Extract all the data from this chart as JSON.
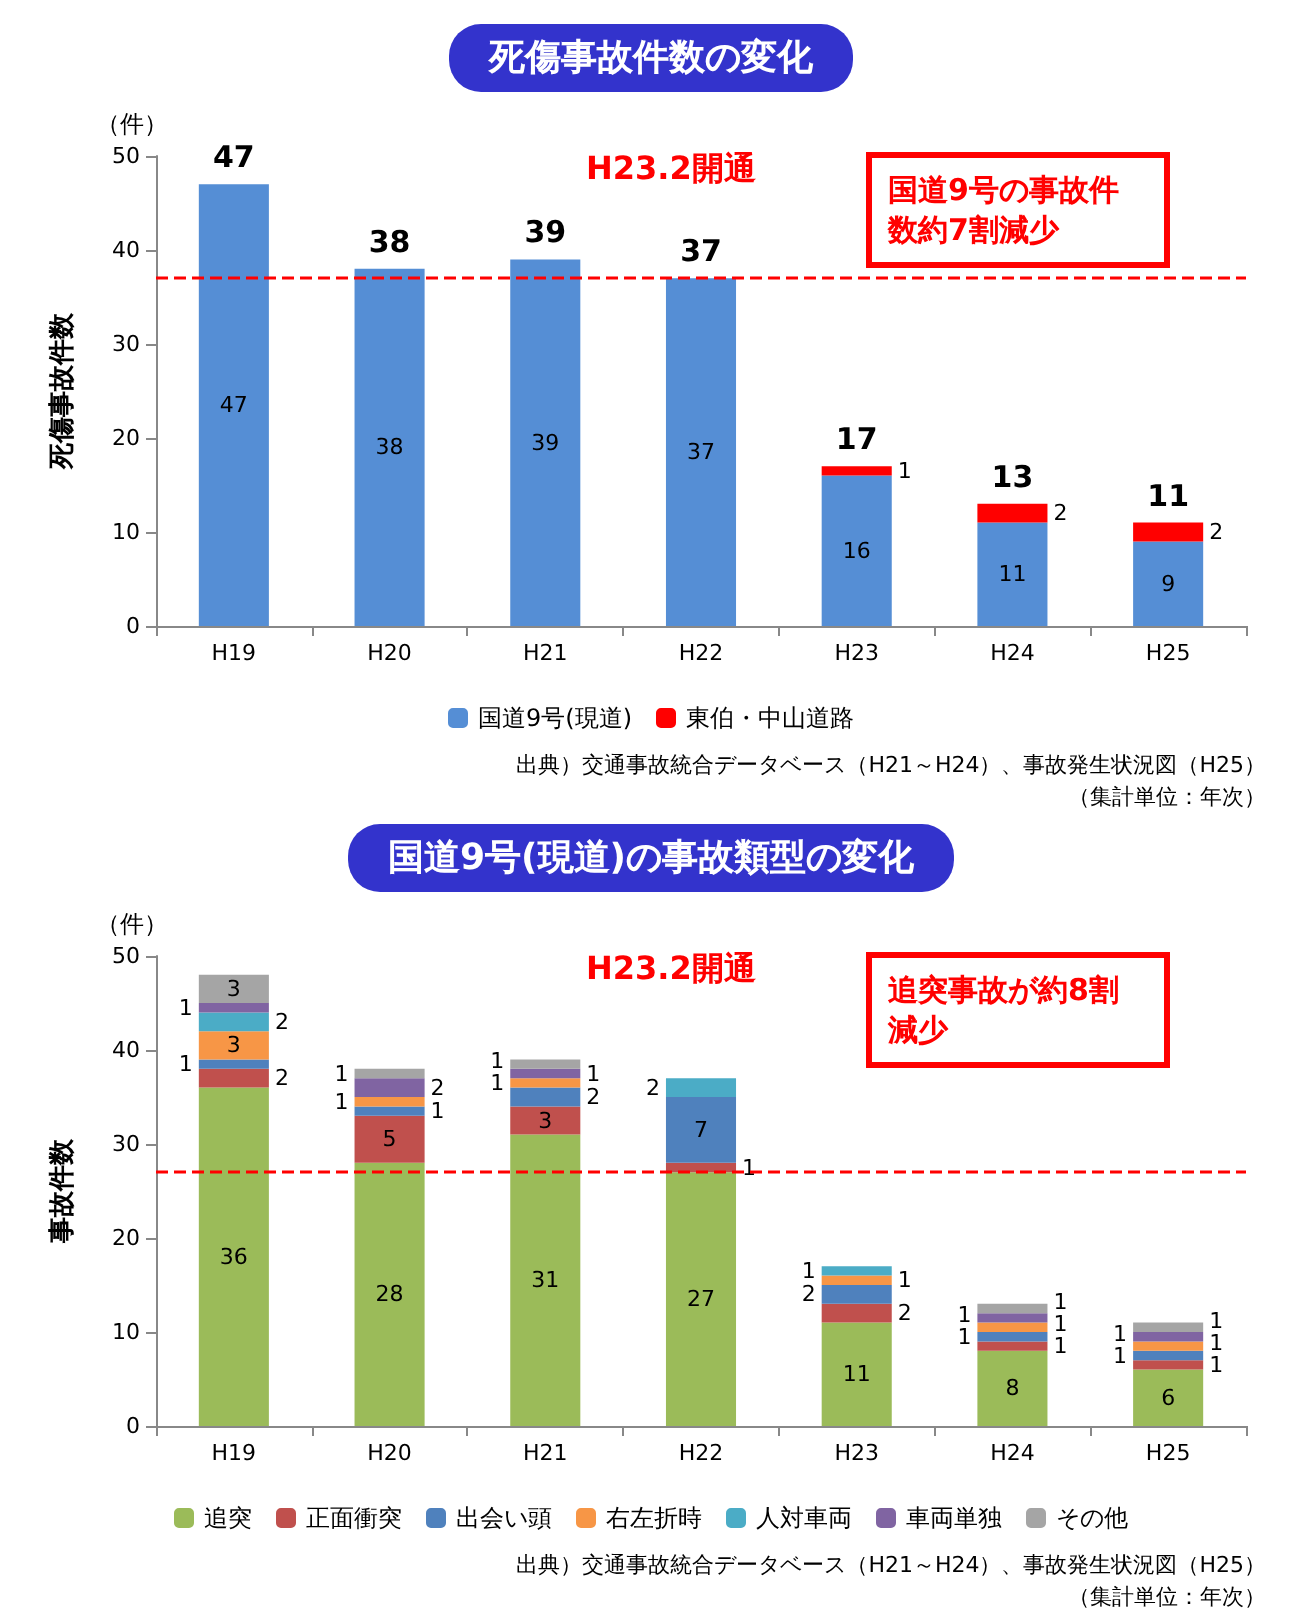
{
  "chart_data": [
    {
      "type": "bar",
      "stacked": true,
      "title": "死傷事故件数の変化",
      "ylabel": "死傷事故件数",
      "categories": [
        "H19",
        "H20",
        "H21",
        "H22",
        "H23",
        "H24",
        "H25"
      ],
      "series": [
        {
          "name": "国道9号(現道)",
          "color": "#558ed5",
          "values": [
            47,
            38,
            39,
            37,
            16,
            11,
            9
          ]
        },
        {
          "name": "東伯・中山道路",
          "color": "#ff0000",
          "values": [
            null,
            null,
            null,
            null,
            1,
            2,
            2
          ]
        }
      ],
      "ylim": [
        0,
        50
      ],
      "yticks": [
        0,
        10,
        20,
        30,
        40,
        50
      ],
      "grid": false,
      "legend": "bottom",
      "data_labels": true,
      "totals": [
        "47",
        "38",
        "39",
        "37",
        "17",
        "13",
        "11"
      ],
      "ref_lines": [
        {
          "axis": "y",
          "value": 37,
          "color": "#ff0000",
          "line_style": "dashed"
        }
      ],
      "annotations": [
        "（件）",
        "H23.2開通",
        "国道9号の事故件数約7割減少",
        "出典）交通事故統合データベース（H21～H24）、事故発生状況図（H25）",
        "（集計単位：年次）"
      ]
    },
    {
      "type": "bar",
      "stacked": true,
      "title": "国道9号(現道)の事故類型の変化",
      "ylabel": "事故件数",
      "categories": [
        "H19",
        "H20",
        "H21",
        "H22",
        "H23",
        "H24",
        "H25"
      ],
      "series": [
        {
          "name": "追突",
          "color": "#9bbb59",
          "values": [
            36,
            28,
            31,
            27,
            11,
            8,
            6
          ]
        },
        {
          "name": "正面衝突",
          "color": "#c0504d",
          "values": [
            2,
            5,
            3,
            1,
            2,
            1,
            1
          ]
        },
        {
          "name": "出会い頭",
          "color": "#4f81bd",
          "values": [
            1,
            1,
            2,
            7,
            2,
            1,
            1
          ]
        },
        {
          "name": "右左折時",
          "color": "#f79646",
          "values": [
            3,
            1,
            1,
            null,
            1,
            1,
            1
          ]
        },
        {
          "name": "人対車両",
          "color": "#4bacc6",
          "values": [
            2,
            null,
            null,
            2,
            1,
            null,
            null
          ]
        },
        {
          "name": "車両単独",
          "color": "#8064a2",
          "values": [
            1,
            2,
            1,
            null,
            null,
            1,
            1
          ]
        },
        {
          "name": "その他",
          "color": "#a5a5a5",
          "values": [
            3,
            1,
            1,
            null,
            null,
            1,
            1
          ]
        }
      ],
      "ylim": [
        0,
        50
      ],
      "yticks": [
        0,
        10,
        20,
        30,
        40,
        50
      ],
      "grid": false,
      "legend": "bottom",
      "data_labels": true,
      "ref_lines": [
        {
          "axis": "y",
          "value": 27,
          "color": "#ff0000",
          "line_style": "dashed"
        }
      ],
      "annotations": [
        "（件）",
        "H23.2開通",
        "追突事故が約8割減少",
        "出典）交通事故統合データベース（H21～H24）、事故発生状況図（H25）",
        "（集計単位：年次）"
      ]
    }
  ]
}
